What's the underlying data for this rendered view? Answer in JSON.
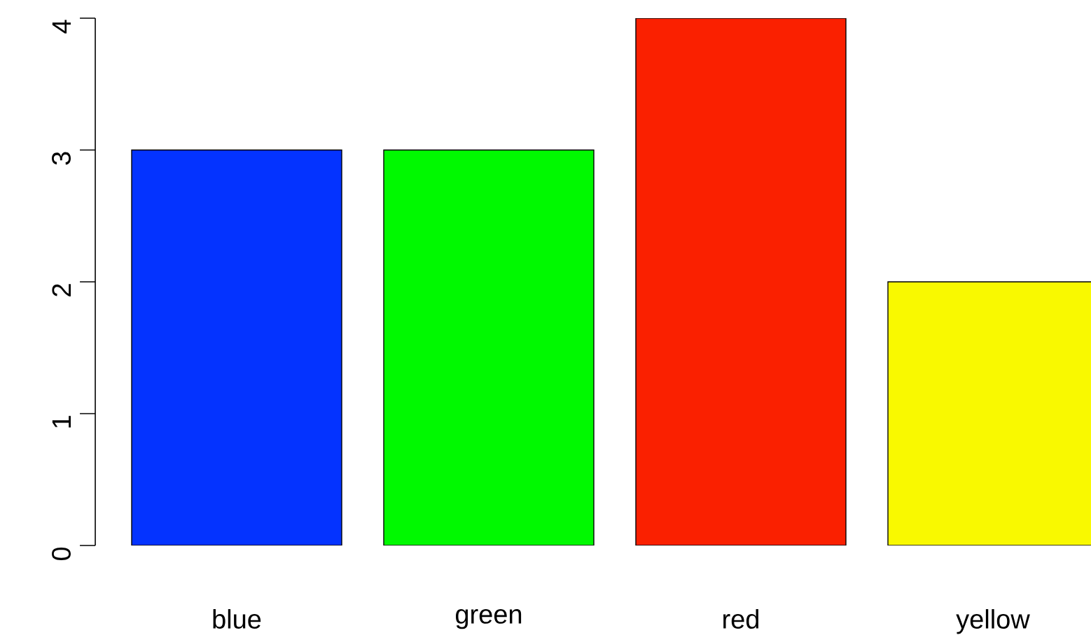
{
  "chart_data": {
    "type": "bar",
    "categories": [
      "blue",
      "green",
      "red",
      "yellow"
    ],
    "values": [
      3,
      3,
      4,
      2
    ],
    "colors": [
      "#0433ff",
      "#00f900",
      "#fa2000",
      "#f9f900"
    ],
    "ylim": [
      0,
      4
    ],
    "yticks": [
      0,
      1,
      2,
      3,
      4
    ]
  }
}
